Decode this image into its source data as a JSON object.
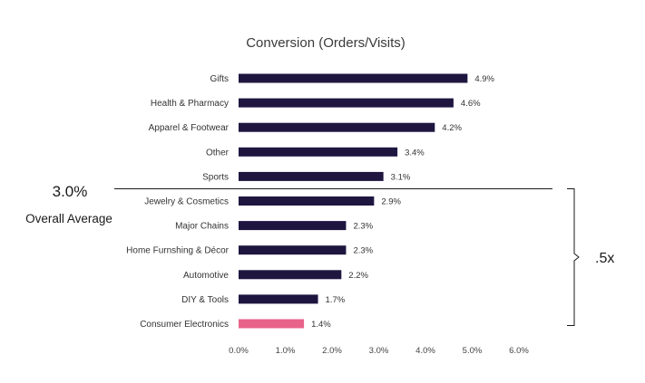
{
  "chart_data": {
    "type": "bar",
    "orientation": "horizontal",
    "title": "Conversion (Orders/Visits)",
    "categories": [
      "Gifts",
      "Health & Pharmacy",
      "Apparel & Footwear",
      "Other",
      "Sports",
      "Jewelry & Cosmetics",
      "Major Chains",
      "Home Furnshing & Décor",
      "Automotive",
      "DIY & Tools",
      "Consumer Electronics"
    ],
    "values": [
      4.9,
      4.6,
      4.2,
      3.4,
      3.1,
      2.9,
      2.3,
      2.3,
      2.2,
      1.7,
      1.4
    ],
    "value_labels": [
      "4.9%",
      "4.6%",
      "4.2%",
      "3.4%",
      "3.1%",
      "2.9%",
      "2.3%",
      "2.3%",
      "2.2%",
      "1.7%",
      "1.4%"
    ],
    "bar_colors": [
      "#1f1640",
      "#1f1640",
      "#1f1640",
      "#1f1640",
      "#1f1640",
      "#1f1640",
      "#1f1640",
      "#1f1640",
      "#1f1640",
      "#1f1640",
      "#e8628a"
    ],
    "xlim": [
      0,
      6
    ],
    "x_ticks": [
      0,
      1,
      2,
      3,
      4,
      5,
      6
    ],
    "x_tick_labels": [
      "0.0%",
      "1.0%",
      "2.0%",
      "3.0%",
      "4.0%",
      "5.0%",
      "6.0%"
    ],
    "grid": false,
    "annotations": {
      "average_value": "3.0%",
      "average_label": "Overall Average",
      "average_line_after_category": "Sports",
      "bracket_from_category": "Jewelry & Cosmetics",
      "bracket_to_category": "Consumer Electronics",
      "bracket_label": ".5x"
    }
  }
}
